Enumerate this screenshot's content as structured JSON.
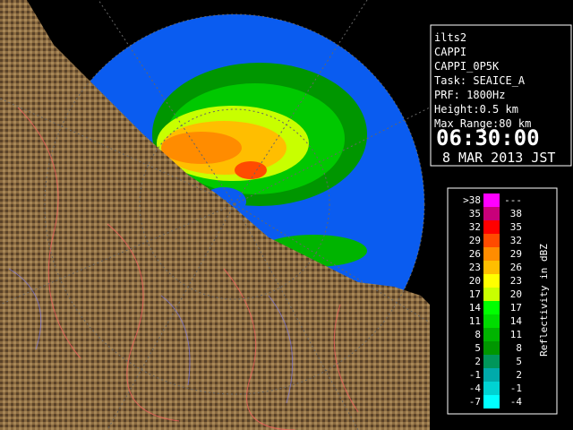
{
  "info": {
    "lines": [
      "ilts2",
      "CAPPI",
      "CAPPI_0P5K",
      "Task: SEAICE_A",
      "PRF: 1800Hz",
      "Height:0.5 km",
      "Max Range:80 km"
    ],
    "time": "06:30:00",
    "date": "8 MAR 2013 JST"
  },
  "legend": {
    "title": "Reflectivity in dBZ",
    "rows": [
      {
        "from": ">38",
        "to": "---",
        "color": "#ff00ff"
      },
      {
        "from": "35",
        "to": "38",
        "color": "#c8007a"
      },
      {
        "from": "32",
        "to": "35",
        "color": "#ff0000"
      },
      {
        "from": "29",
        "to": "32",
        "color": "#ff4b00"
      },
      {
        "from": "26",
        "to": "29",
        "color": "#ff8c00"
      },
      {
        "from": "23",
        "to": "26",
        "color": "#ffbe00"
      },
      {
        "from": "20",
        "to": "23",
        "color": "#ffff00"
      },
      {
        "from": "17",
        "to": "20",
        "color": "#c8ff00"
      },
      {
        "from": "14",
        "to": "17",
        "color": "#00ff00"
      },
      {
        "from": "11",
        "to": "14",
        "color": "#00dc00"
      },
      {
        "from": "8",
        "to": "11",
        "color": "#00b400"
      },
      {
        "from": "5",
        "to": "8",
        "color": "#009600"
      },
      {
        "from": "2",
        "to": "5",
        "color": "#00965a"
      },
      {
        "from": "-1",
        "to": "2",
        "color": "#00aaaa"
      },
      {
        "from": "-4",
        "to": "-1",
        "color": "#00d2d2"
      },
      {
        "from": "-7",
        "to": "-4",
        "color": "#00ffff"
      }
    ]
  }
}
